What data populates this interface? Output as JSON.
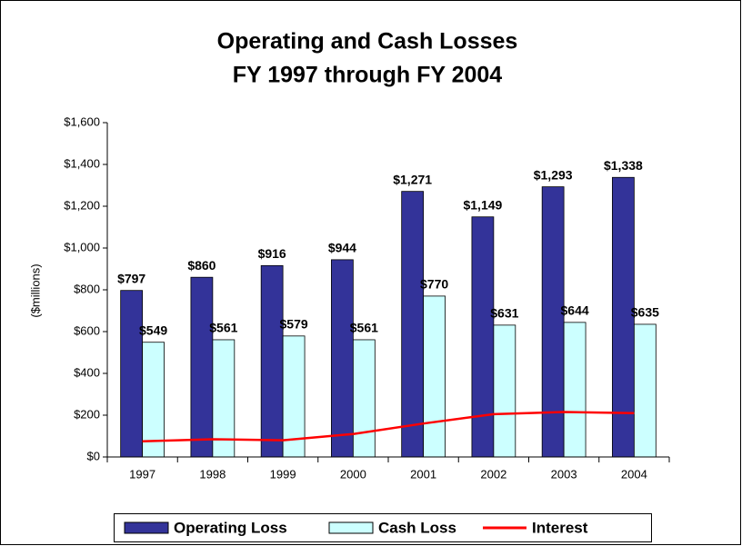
{
  "chart_data": {
    "type": "bar",
    "title": [
      "Operating and Cash Losses",
      "FY 1997 through FY 2004"
    ],
    "y_label": "($millions)",
    "categories": [
      "1997",
      "1998",
      "1999",
      "2000",
      "2001",
      "2002",
      "2003",
      "2004"
    ],
    "series": [
      {
        "name": "Operating Loss",
        "type": "bar",
        "color": "#333399",
        "values": [
          797,
          860,
          916,
          944,
          1271,
          1149,
          1293,
          1338
        ],
        "value_labels": [
          "$797",
          "$860",
          "$916",
          "$944",
          "$1,271",
          "$1,149",
          "$1,293",
          "$1,338"
        ]
      },
      {
        "name": "Cash Loss",
        "type": "bar",
        "color": "#ccffff",
        "values": [
          549,
          561,
          579,
          561,
          770,
          631,
          644,
          635
        ],
        "value_labels": [
          "$549",
          "$561",
          "$579",
          "$561",
          "$770",
          "$631",
          "$644",
          "$635"
        ]
      },
      {
        "name": "Interest",
        "type": "line",
        "color": "#ff0000",
        "values": [
          75,
          85,
          80,
          110,
          160,
          205,
          215,
          210
        ]
      }
    ],
    "ylim": [
      0,
      1600
    ],
    "yticks": [
      {
        "value": 0,
        "label": "$0"
      },
      {
        "value": 200,
        "label": "$200"
      },
      {
        "value": 400,
        "label": "$400"
      },
      {
        "value": 600,
        "label": "$600"
      },
      {
        "value": 800,
        "label": "$800"
      },
      {
        "value": 1000,
        "label": "$1,000"
      },
      {
        "value": 1200,
        "label": "$1,200"
      },
      {
        "value": 1400,
        "label": "$1,400"
      },
      {
        "value": 1600,
        "label": "$1,600"
      }
    ],
    "grid": false,
    "legend": "bottom"
  }
}
